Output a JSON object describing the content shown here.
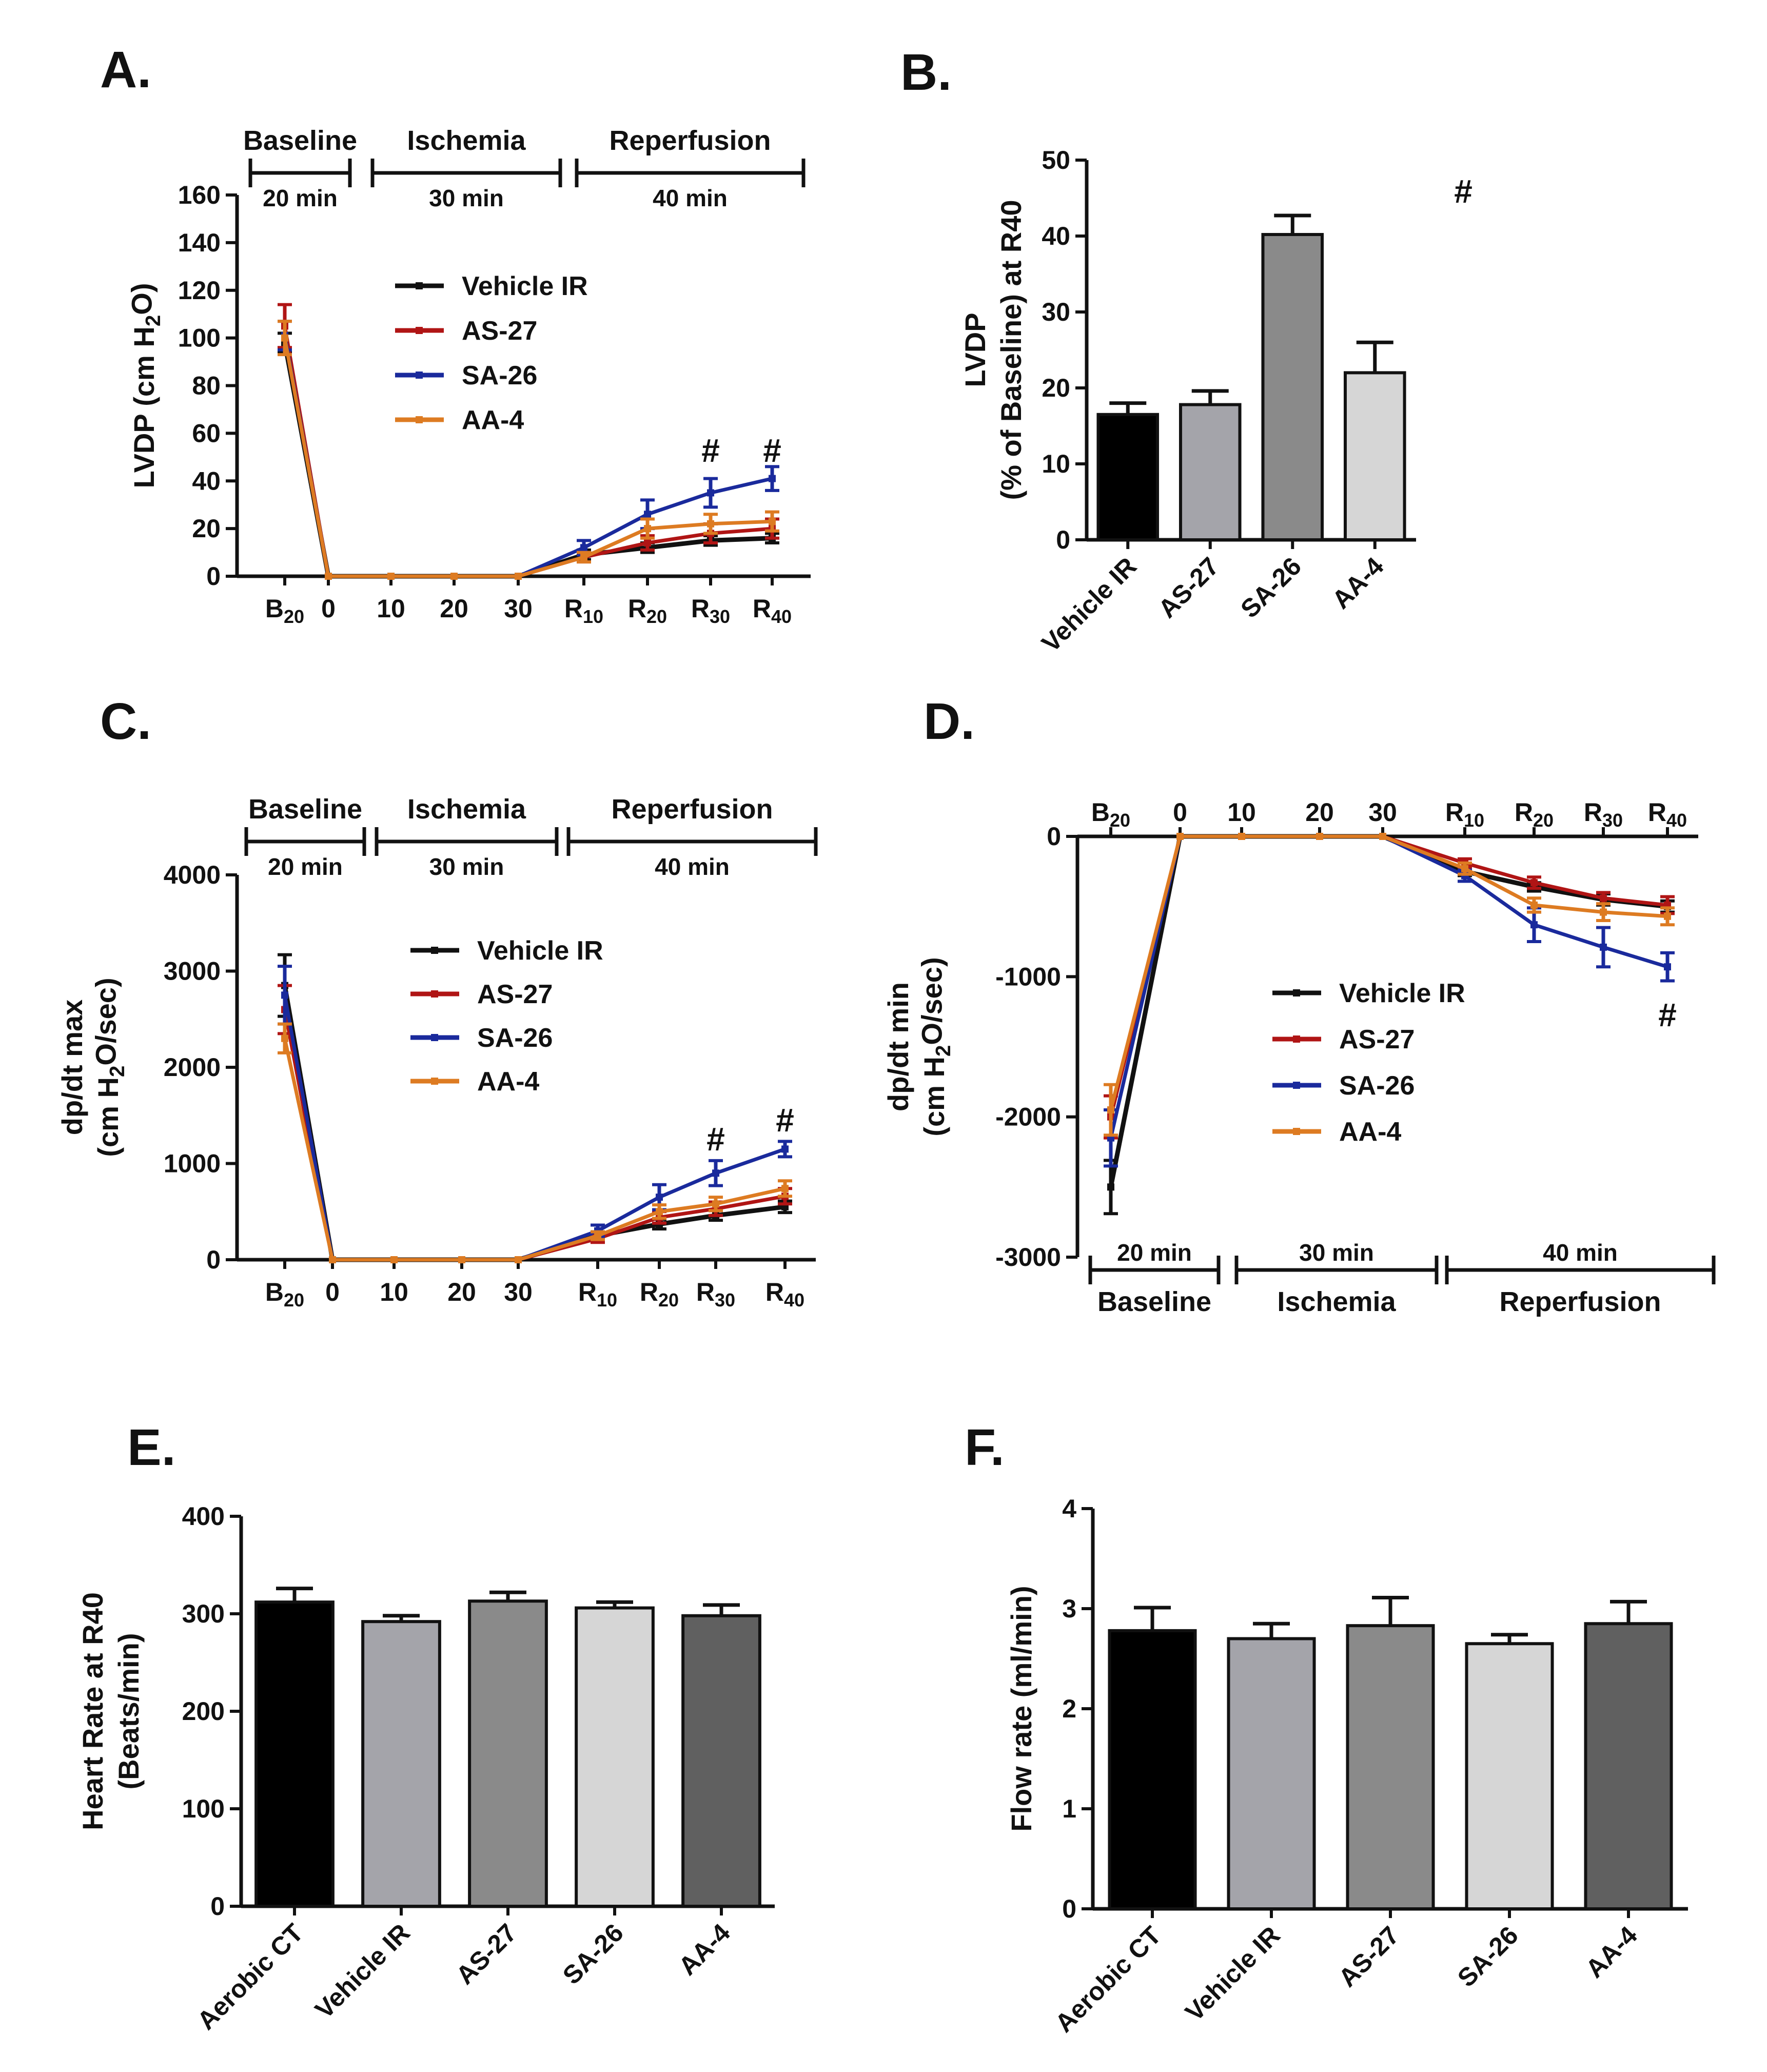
{
  "colors": {
    "vehicle": "#111111",
    "as27": "#b01515",
    "sa26": "#1a2a9c",
    "aa4": "#dd7b22",
    "bar_black": "#000000",
    "bar_light": "#a4a4aa",
    "bar_mid": "#8a8a8a",
    "bar_pale": "#d6d6d6",
    "bar_dark": "#606060"
  },
  "phases": {
    "baseline": "Baseline",
    "ischemia": "Ischemia",
    "reperfusion": "Reperfusion",
    "d20": "20 min",
    "d30": "30 min",
    "d40": "40 min"
  },
  "legend": [
    "Vehicle IR",
    "AS-27",
    "SA-26",
    "AA-4"
  ],
  "time_ticks": [
    "B20",
    "0",
    "10",
    "20",
    "30",
    "R10",
    "R20",
    "R30",
    "R40"
  ],
  "chart_data": [
    {
      "id": "A",
      "panel_label": "A.",
      "type": "line",
      "ylabel": "LVDP (cm H2O)",
      "ylim": [
        0,
        160
      ],
      "yticks": [
        "0",
        "20",
        "40",
        "60",
        "80",
        "100",
        "120",
        "140",
        "160"
      ],
      "x": [
        "B20",
        "0",
        "10",
        "20",
        "30",
        "R10",
        "R20",
        "R30",
        "R40"
      ],
      "series": [
        {
          "name": "Vehicle IR",
          "values": [
            98,
            0,
            0,
            0,
            0,
            9,
            12,
            15,
            16
          ],
          "err": [
            4,
            0,
            0,
            0,
            0,
            2,
            2,
            2,
            2
          ]
        },
        {
          "name": "AS-27",
          "values": [
            105,
            0,
            0,
            0,
            0,
            8,
            14,
            18,
            20
          ],
          "err": [
            9,
            0,
            0,
            0,
            0,
            2,
            3,
            4,
            4
          ]
        },
        {
          "name": "SA-26",
          "values": [
            101,
            0,
            0,
            0,
            0,
            12,
            26,
            35,
            41
          ],
          "err": [
            6,
            0,
            0,
            0,
            0,
            3,
            6,
            6,
            5
          ]
        },
        {
          "name": "AA-4",
          "values": [
            100,
            0,
            0,
            0,
            0,
            8,
            20,
            22,
            23
          ],
          "err": [
            7,
            0,
            0,
            0,
            0,
            2,
            4,
            4,
            4
          ]
        }
      ],
      "annotations": [
        "#",
        "#"
      ]
    },
    {
      "id": "B",
      "panel_label": "B.",
      "type": "bar",
      "ylabel": "LVDP",
      "ylabel2": "(% of Baseline) at R40",
      "ylim": [
        0,
        50
      ],
      "yticks": [
        "0",
        "10",
        "20",
        "30",
        "40",
        "50"
      ],
      "categories": [
        "Vehicle IR",
        "AS-27",
        "SA-26",
        "AA-4"
      ],
      "values": [
        16.5,
        17.8,
        40.2,
        22.0
      ],
      "err": [
        1.5,
        1.8,
        2.5,
        4.0
      ],
      "annotations": [
        "#"
      ]
    },
    {
      "id": "C",
      "panel_label": "C.",
      "type": "line",
      "ylabel": "dp/dt max",
      "ylabel2": "(cm H2O/sec)",
      "ylim": [
        0,
        4000
      ],
      "yticks": [
        "0",
        "1000",
        "2000",
        "3000",
        "4000"
      ],
      "x": [
        "B20",
        "0",
        "10",
        "20",
        "30",
        "R10",
        "R20",
        "R30",
        "R40"
      ],
      "series": [
        {
          "name": "Vehicle IR",
          "values": [
            2850,
            0,
            0,
            0,
            0,
            250,
            370,
            460,
            550
          ],
          "err": [
            320,
            0,
            0,
            0,
            0,
            40,
            50,
            50,
            60
          ]
        },
        {
          "name": "AS-27",
          "values": [
            2600,
            0,
            0,
            0,
            0,
            220,
            440,
            530,
            660
          ],
          "err": [
            250,
            0,
            0,
            0,
            0,
            40,
            60,
            70,
            80
          ]
        },
        {
          "name": "SA-26",
          "values": [
            2750,
            0,
            0,
            0,
            0,
            300,
            650,
            900,
            1150
          ],
          "err": [
            300,
            0,
            0,
            0,
            0,
            60,
            130,
            130,
            80
          ]
        },
        {
          "name": "AA-4",
          "values": [
            2300,
            0,
            0,
            0,
            0,
            250,
            500,
            580,
            740
          ],
          "err": [
            150,
            0,
            0,
            0,
            0,
            40,
            70,
            70,
            80
          ]
        }
      ],
      "annotations": [
        "#",
        "#"
      ]
    },
    {
      "id": "D",
      "panel_label": "D.",
      "type": "line",
      "ylabel": "dp/dt min",
      "ylabel2": "(cm H2O/sec)",
      "ylim": [
        -3000,
        0
      ],
      "yticks": [
        "0",
        "-1000",
        "-2000",
        "-3000"
      ],
      "x": [
        "B20",
        "0",
        "10",
        "20",
        "30",
        "R10",
        "R20",
        "R30",
        "R40"
      ],
      "series": [
        {
          "name": "Vehicle IR",
          "values": [
            -2500,
            0,
            0,
            0,
            0,
            -250,
            -360,
            -450,
            -500
          ],
          "err": [
            190,
            0,
            0,
            0,
            0,
            30,
            30,
            40,
            40
          ]
        },
        {
          "name": "AS-27",
          "values": [
            -2000,
            0,
            0,
            0,
            0,
            -190,
            -330,
            -440,
            -490
          ],
          "err": [
            150,
            0,
            0,
            0,
            0,
            30,
            40,
            40,
            60
          ]
        },
        {
          "name": "SA-26",
          "values": [
            -2150,
            0,
            0,
            0,
            0,
            -280,
            -630,
            -790,
            -930
          ],
          "err": [
            200,
            0,
            0,
            0,
            0,
            40,
            120,
            140,
            100
          ]
        },
        {
          "name": "AA-4",
          "values": [
            -1950,
            0,
            0,
            0,
            0,
            -230,
            -490,
            -540,
            -570
          ],
          "err": [
            180,
            0,
            0,
            0,
            0,
            40,
            50,
            60,
            60
          ]
        }
      ],
      "annotations": [
        "#"
      ]
    },
    {
      "id": "E",
      "panel_label": "E.",
      "type": "bar",
      "ylabel": "Heart Rate at R40",
      "ylabel2": "(Beats/min)",
      "ylim": [
        0,
        400
      ],
      "yticks": [
        "0",
        "100",
        "200",
        "300",
        "400"
      ],
      "categories": [
        "Aerobic CT",
        "Vehicle IR",
        "AS-27",
        "SA-26",
        "AA-4"
      ],
      "values": [
        312,
        292,
        313,
        306,
        298
      ],
      "err": [
        14,
        6,
        9,
        6,
        11
      ]
    },
    {
      "id": "F",
      "panel_label": "F.",
      "type": "bar",
      "ylabel": "Flow rate (ml/min)",
      "ylim": [
        0,
        4
      ],
      "yticks": [
        "0",
        "1",
        "2",
        "3",
        "4"
      ],
      "categories": [
        "Aerobic CT",
        "Vehicle IR",
        "AS-27",
        "SA-26",
        "AA-4"
      ],
      "values": [
        2.78,
        2.7,
        2.83,
        2.65,
        2.85
      ],
      "err": [
        0.23,
        0.15,
        0.28,
        0.09,
        0.22
      ]
    }
  ]
}
